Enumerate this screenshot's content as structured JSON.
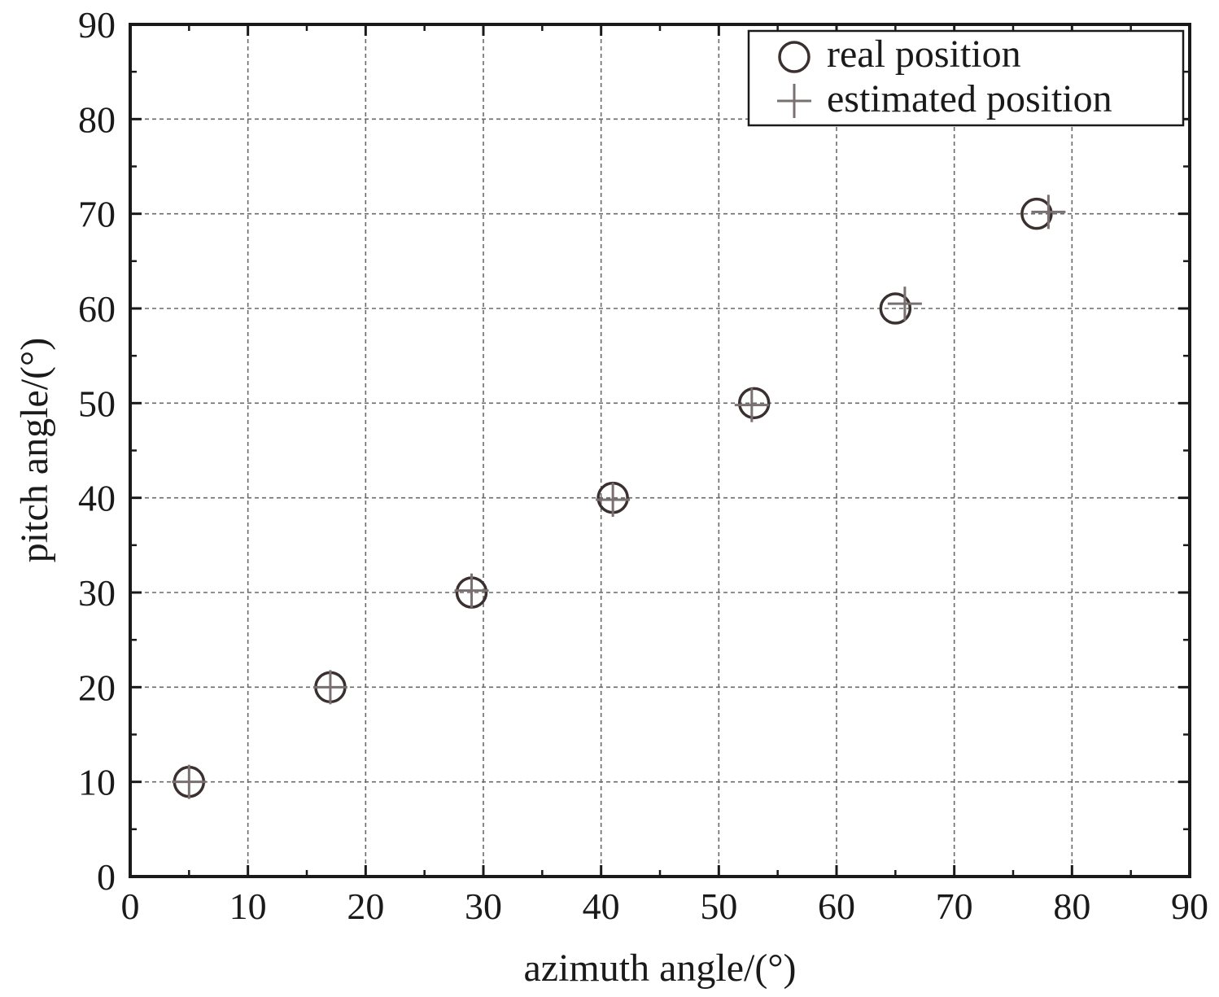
{
  "chart_data": {
    "type": "scatter",
    "title": "",
    "xlabel": "azimuth angle/(°)",
    "ylabel": "pitch angle/(°)",
    "xlim": [
      0,
      90
    ],
    "ylim": [
      0,
      90
    ],
    "xticks": [
      0,
      10,
      20,
      30,
      40,
      50,
      60,
      70,
      80,
      90
    ],
    "yticks": [
      0,
      10,
      20,
      30,
      40,
      50,
      60,
      70,
      80,
      90
    ],
    "grid": true,
    "legend_position": "top-right",
    "series": [
      {
        "name": "real position",
        "marker": "circle",
        "color": "#3a3030",
        "points": [
          {
            "x": 5,
            "y": 10
          },
          {
            "x": 17,
            "y": 20
          },
          {
            "x": 29,
            "y": 30
          },
          {
            "x": 41,
            "y": 40
          },
          {
            "x": 53,
            "y": 50
          },
          {
            "x": 65,
            "y": 60
          },
          {
            "x": 77,
            "y": 70
          }
        ]
      },
      {
        "name": "estimated position",
        "marker": "plus",
        "color": "#7a7070",
        "points": [
          {
            "x": 5,
            "y": 10
          },
          {
            "x": 17,
            "y": 20
          },
          {
            "x": 29,
            "y": 30.2
          },
          {
            "x": 41,
            "y": 39.8
          },
          {
            "x": 52.8,
            "y": 49.8
          },
          {
            "x": 65.8,
            "y": 60.5
          },
          {
            "x": 78,
            "y": 70.2
          }
        ]
      }
    ]
  }
}
